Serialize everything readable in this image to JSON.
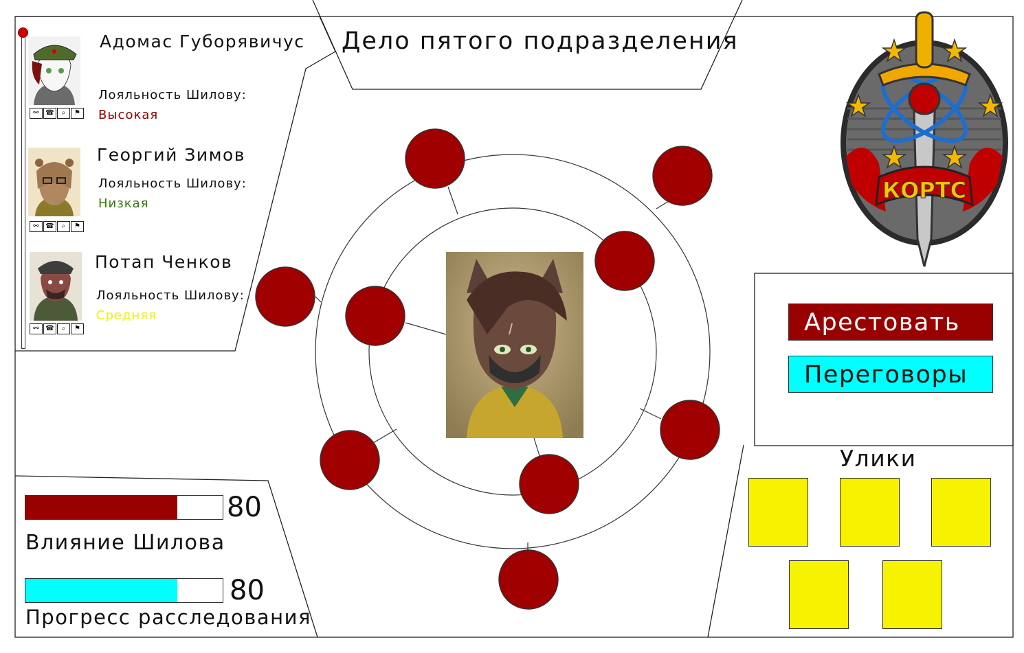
{
  "case_title": "Дело пятого подразделения",
  "colors": {
    "dark_red": "#990000",
    "cyan": "#00ffff",
    "yellow": "#f7f200",
    "loyalty_high": "#8b0000",
    "loyalty_low": "#2e7d00",
    "loyalty_mid": "#f2f200"
  },
  "suspects": [
    {
      "name": "Адомас Губорявичус",
      "loyalty_label": "Лояльность Шилову:",
      "loyalty_value": "Высокая",
      "icons": [
        "handcuffs-icon",
        "phone-icon",
        "magnifier-icon",
        "flag-icon"
      ]
    },
    {
      "name": "Георгий Зимов",
      "loyalty_label": "Лояльность Шилову:",
      "loyalty_value": "Низкая",
      "icons": [
        "handcuffs-icon",
        "phone-icon",
        "magnifier-icon",
        "flag-icon"
      ]
    },
    {
      "name": "Потап Ченков",
      "loyalty_label": "Лояльность Шилову:",
      "loyalty_value": "Средняя",
      "icons": [
        "handcuffs-icon",
        "phone-icon",
        "magnifier-icon",
        "flag-icon"
      ]
    }
  ],
  "actions": {
    "arrest_label": "Арестовать",
    "negotiate_label": "Переговоры"
  },
  "evidence": {
    "title": "Улики",
    "slot_count": 5
  },
  "stats": {
    "influence": {
      "label": "Влияние Шилова",
      "value": 80,
      "fill_fraction": 0.77
    },
    "progress": {
      "label": "Прогресс расследования",
      "value": 80,
      "fill_fraction": 0.77
    }
  },
  "emblem": {
    "text": "КОРТС"
  }
}
